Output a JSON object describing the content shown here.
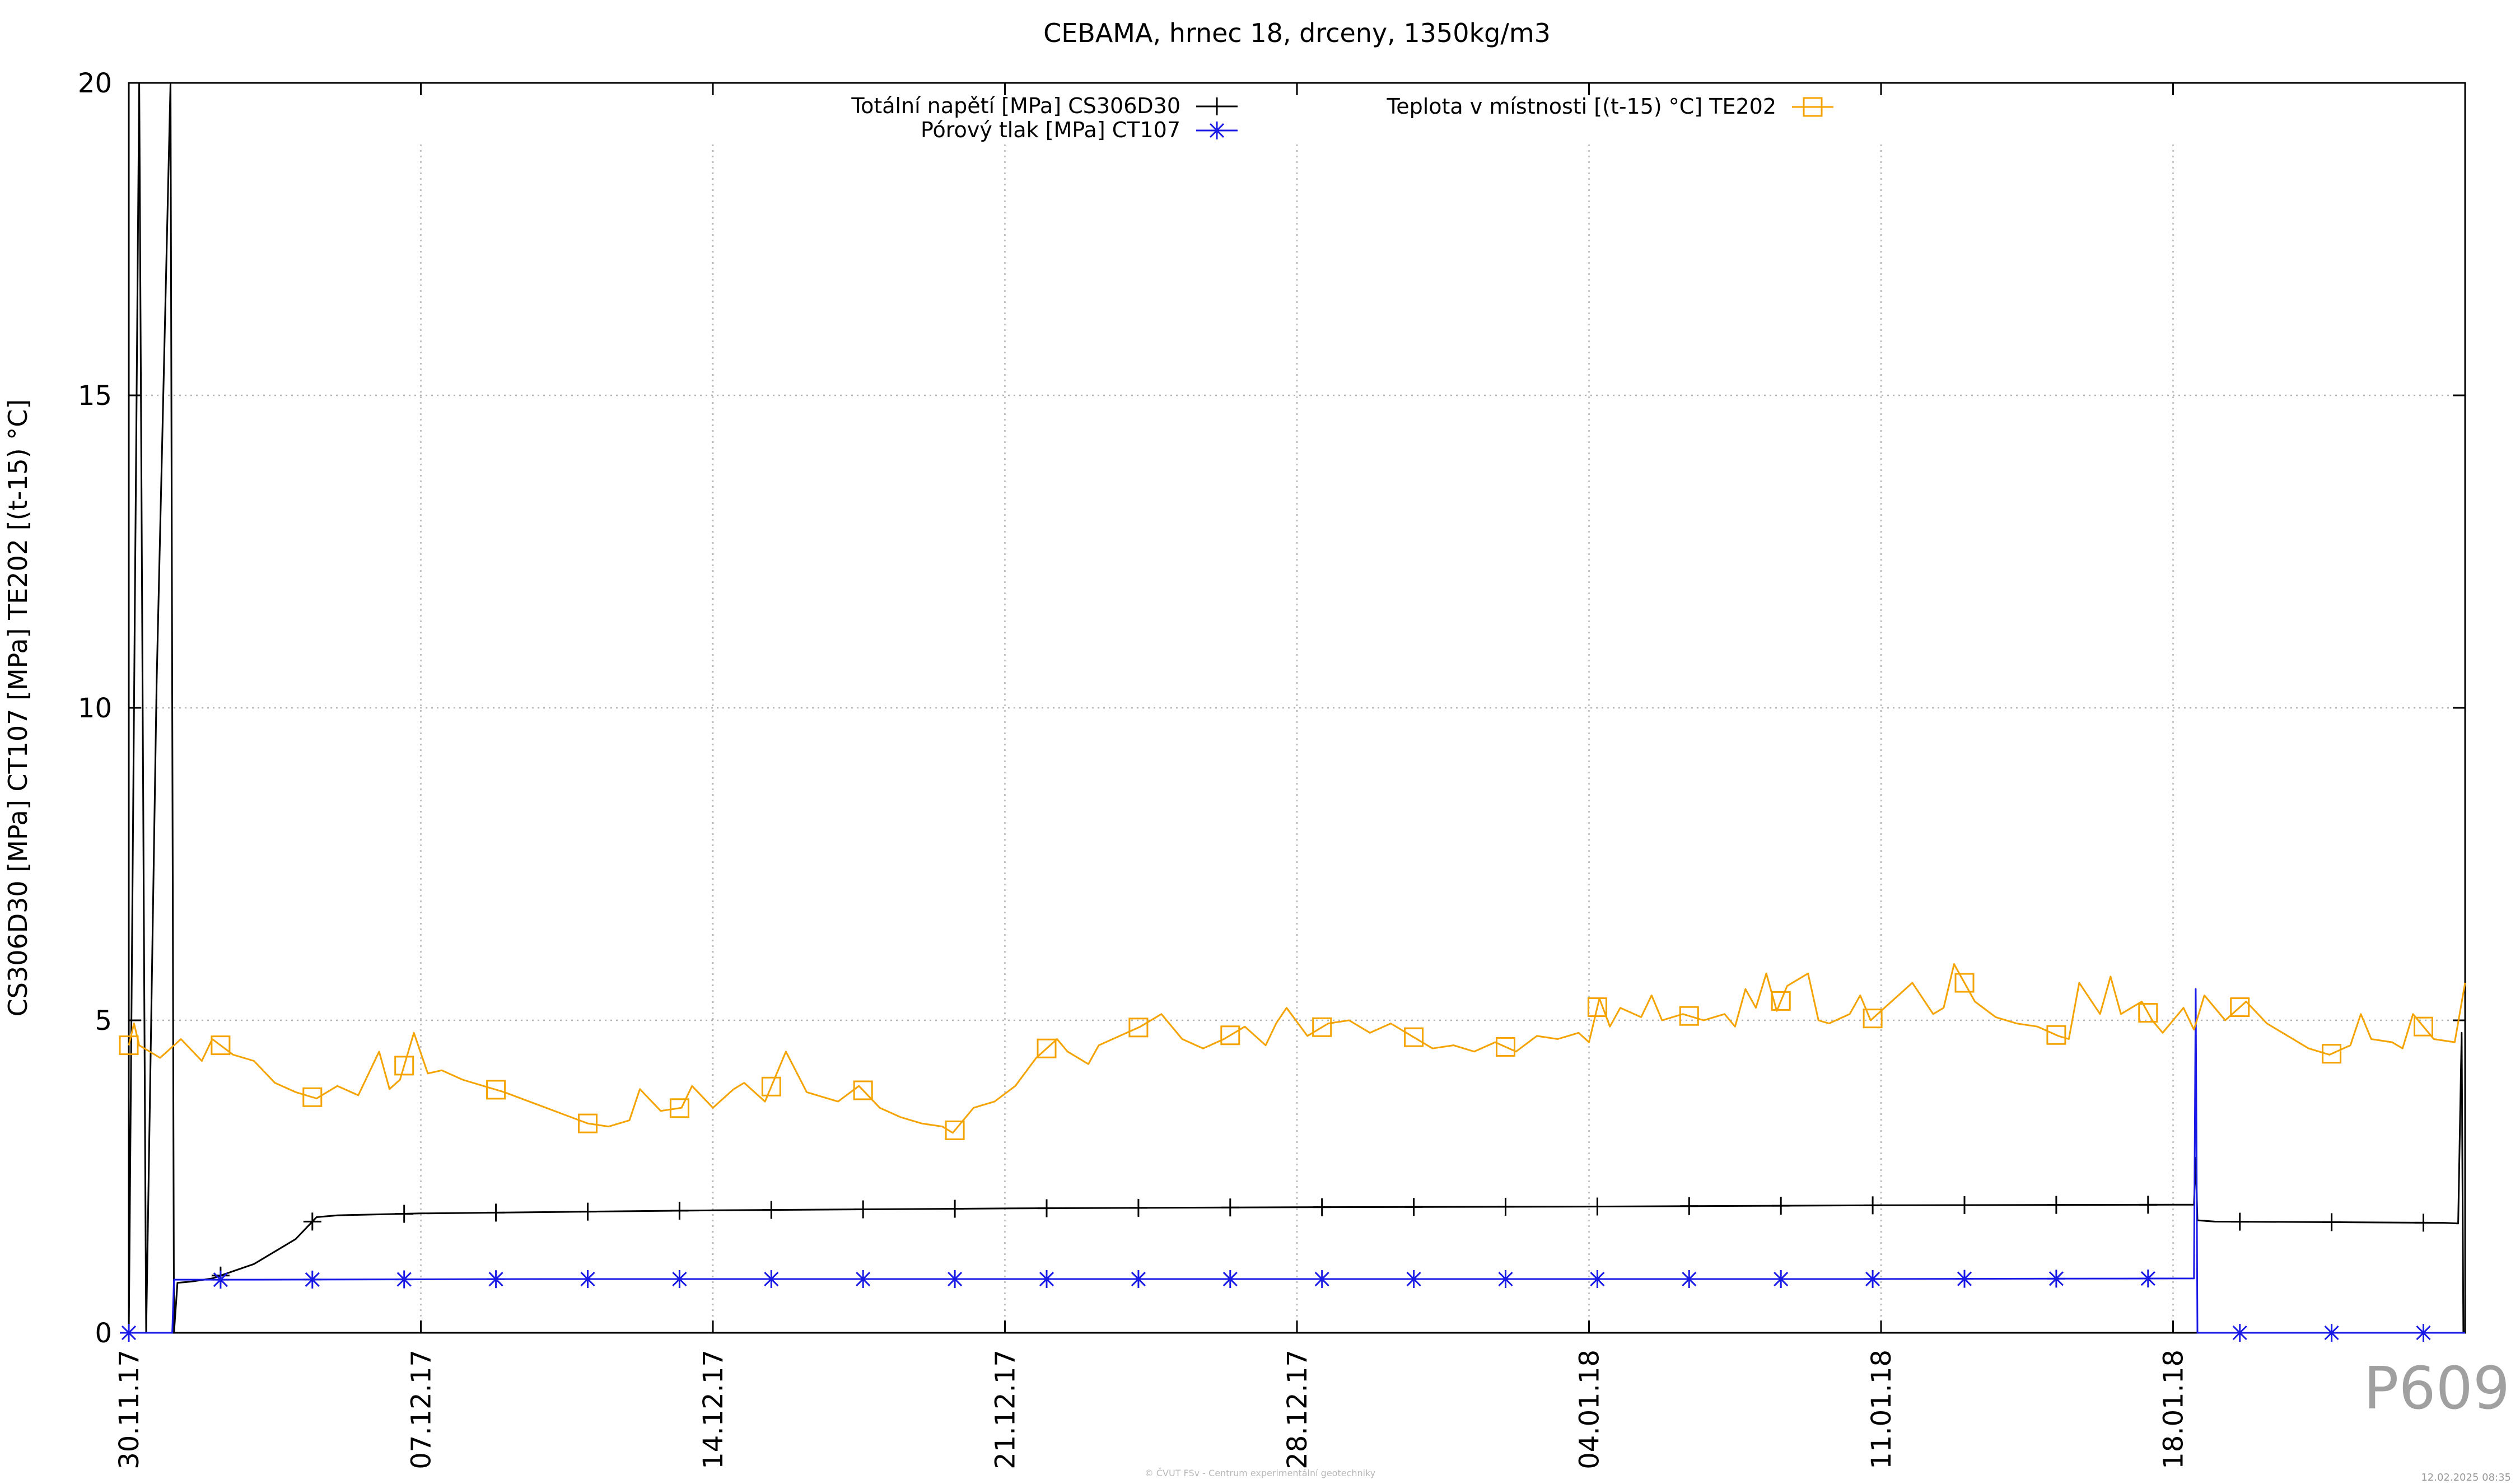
{
  "chart_data": {
    "type": "line",
    "title": "CEBAMA, hrnec 18, drceny, 1350kg/m3",
    "ylabel": "CS306D30 [MPa] CT107 [MPa] TE202 [(t-15) °C]",
    "ylim": [
      0,
      20
    ],
    "yticks": [
      0,
      5,
      10,
      15,
      20
    ],
    "xlim": [
      "2017-11-30",
      "2018-01-25"
    ],
    "xticks": [
      "30.11.17",
      "07.12.17",
      "14.12.17",
      "21.12.17",
      "28.12.17",
      "04.01.18",
      "11.01.18",
      "18.01.18"
    ],
    "grid": true,
    "legend": "top-center",
    "series": [
      {
        "name": "Totální napětí [MPa] CS306D30",
        "color": "#000000",
        "marker": "plus",
        "points": [
          [
            "2017-11-30 00:00",
            0
          ],
          [
            "2017-11-30 06:00",
            20
          ],
          [
            "2017-11-30 10:00",
            0
          ],
          [
            "2017-11-30 16:00",
            10.4
          ],
          [
            "2017-12-01 00:00",
            20
          ],
          [
            "2017-12-01 02:00",
            0
          ],
          [
            "2017-12-01 04:00",
            0.8
          ],
          [
            "2017-12-01 12:00",
            0.82
          ],
          [
            "2017-12-02 00:00",
            0.87
          ],
          [
            "2017-12-03 00:00",
            1.1
          ],
          [
            "2017-12-04 00:00",
            1.5
          ],
          [
            "2017-12-04 12:00",
            1.85
          ],
          [
            "2017-12-05 00:00",
            1.88
          ],
          [
            "2017-12-07 00:00",
            1.91
          ],
          [
            "2017-12-14 00:00",
            1.96
          ],
          [
            "2017-12-21 00:00",
            1.99
          ],
          [
            "2017-12-28 00:00",
            2.01
          ],
          [
            "2018-01-04 00:00",
            2.02
          ],
          [
            "2018-01-11 00:00",
            2.04
          ],
          [
            "2018-01-18 00:00",
            2.05
          ],
          [
            "2018-01-18 12:00",
            2.05
          ],
          [
            "2018-01-18 13:00",
            2.8
          ],
          [
            "2018-01-18 14:00",
            1.8
          ],
          [
            "2018-01-19 00:00",
            1.78
          ],
          [
            "2018-01-22 00:00",
            1.77
          ],
          [
            "2018-01-24 12:00",
            1.76
          ],
          [
            "2018-01-24 20:00",
            1.75
          ],
          [
            "2018-01-24 22:00",
            4.8
          ],
          [
            "2018-01-24 23:00",
            0
          ]
        ]
      },
      {
        "name": "Pórový tlak [MPa] CT107",
        "color": "#1a1ae6",
        "marker": "star",
        "points": [
          [
            "2017-11-30 00:00",
            0
          ],
          [
            "2017-12-01 01:00",
            0
          ],
          [
            "2017-12-01 02:00",
            0.85
          ],
          [
            "2017-12-03 00:00",
            0.85
          ],
          [
            "2017-12-10 00:00",
            0.86
          ],
          [
            "2017-12-20 00:00",
            0.86
          ],
          [
            "2018-01-01 00:00",
            0.86
          ],
          [
            "2018-01-10 00:00",
            0.86
          ],
          [
            "2018-01-18 12:00",
            0.87
          ],
          [
            "2018-01-18 13:00",
            5.5
          ],
          [
            "2018-01-18 14:00",
            0
          ],
          [
            "2018-01-25 00:00",
            0
          ]
        ]
      },
      {
        "name": "Teplota v místnosti [(t-15) °C] TE202",
        "color": "#f5a300",
        "marker": "square",
        "points": [
          [
            "2017-11-30 00:00",
            4.6
          ],
          [
            "2017-11-30 03:00",
            4.95
          ],
          [
            "2017-11-30 06:00",
            4.6
          ],
          [
            "2017-11-30 18:00",
            4.4
          ],
          [
            "2017-12-01 06:00",
            4.7
          ],
          [
            "2017-12-01 18:00",
            4.35
          ],
          [
            "2017-12-02 00:00",
            4.7
          ],
          [
            "2017-12-02 12:00",
            4.45
          ],
          [
            "2017-12-03 00:00",
            4.35
          ],
          [
            "2017-12-03 12:00",
            4.0
          ],
          [
            "2017-12-04 00:00",
            3.85
          ],
          [
            "2017-12-04 12:00",
            3.75
          ],
          [
            "2017-12-05 00:00",
            3.95
          ],
          [
            "2017-12-05 12:00",
            3.8
          ],
          [
            "2017-12-06 00:00",
            4.5
          ],
          [
            "2017-12-06 06:00",
            3.9
          ],
          [
            "2017-12-06 12:00",
            4.05
          ],
          [
            "2017-12-06 20:00",
            4.8
          ],
          [
            "2017-12-07 04:00",
            4.15
          ],
          [
            "2017-12-07 12:00",
            4.2
          ],
          [
            "2017-12-08 00:00",
            4.05
          ],
          [
            "2017-12-08 12:00",
            3.95
          ],
          [
            "2017-12-09 00:00",
            3.85
          ],
          [
            "2017-12-10 00:00",
            3.6
          ],
          [
            "2017-12-11 00:00",
            3.35
          ],
          [
            "2017-12-11 12:00",
            3.3
          ],
          [
            "2017-12-12 00:00",
            3.4
          ],
          [
            "2017-12-12 06:00",
            3.9
          ],
          [
            "2017-12-12 18:00",
            3.55
          ],
          [
            "2017-12-13 06:00",
            3.6
          ],
          [
            "2017-12-13 12:00",
            3.95
          ],
          [
            "2017-12-14 00:00",
            3.6
          ],
          [
            "2017-12-14 12:00",
            3.9
          ],
          [
            "2017-12-14 18:00",
            4.0
          ],
          [
            "2017-12-15 06:00",
            3.7
          ],
          [
            "2017-12-15 18:00",
            4.5
          ],
          [
            "2017-12-16 06:00",
            3.85
          ],
          [
            "2017-12-17 00:00",
            3.7
          ],
          [
            "2017-12-17 12:00",
            3.95
          ],
          [
            "2017-12-18 00:00",
            3.6
          ],
          [
            "2017-12-18 12:00",
            3.45
          ],
          [
            "2017-12-19 00:00",
            3.35
          ],
          [
            "2017-12-19 12:00",
            3.3
          ],
          [
            "2017-12-19 18:00",
            3.2
          ],
          [
            "2017-12-20 06:00",
            3.6
          ],
          [
            "2017-12-20 18:00",
            3.7
          ],
          [
            "2017-12-21 06:00",
            3.95
          ],
          [
            "2017-12-21 18:00",
            4.4
          ],
          [
            "2017-12-22 06:00",
            4.7
          ],
          [
            "2017-12-22 12:00",
            4.5
          ],
          [
            "2017-12-23 00:00",
            4.3
          ],
          [
            "2017-12-23 06:00",
            4.6
          ],
          [
            "2017-12-23 18:00",
            4.75
          ],
          [
            "2017-12-24 06:00",
            4.9
          ],
          [
            "2017-12-24 18:00",
            5.1
          ],
          [
            "2017-12-25 06:00",
            4.7
          ],
          [
            "2017-12-25 18:00",
            4.55
          ],
          [
            "2017-12-26 06:00",
            4.7
          ],
          [
            "2017-12-26 18:00",
            4.9
          ],
          [
            "2017-12-27 06:00",
            4.6
          ],
          [
            "2017-12-27 12:00",
            4.95
          ],
          [
            "2017-12-27 18:00",
            5.2
          ],
          [
            "2017-12-28 06:00",
            4.75
          ],
          [
            "2017-12-28 18:00",
            4.95
          ],
          [
            "2017-12-29 06:00",
            5.0
          ],
          [
            "2017-12-29 18:00",
            4.8
          ],
          [
            "2017-12-30 06:00",
            4.95
          ],
          [
            "2017-12-30 18:00",
            4.75
          ],
          [
            "2017-12-31 06:00",
            4.55
          ],
          [
            "2017-12-31 18:00",
            4.6
          ],
          [
            "2018-01-01 06:00",
            4.5
          ],
          [
            "2018-01-01 18:00",
            4.65
          ],
          [
            "2018-01-02 06:00",
            4.5
          ],
          [
            "2018-01-02 18:00",
            4.75
          ],
          [
            "2018-01-03 06:00",
            4.7
          ],
          [
            "2018-01-03 18:00",
            4.8
          ],
          [
            "2018-01-04 00:00",
            4.65
          ],
          [
            "2018-01-04 06:00",
            5.35
          ],
          [
            "2018-01-04 12:00",
            4.9
          ],
          [
            "2018-01-04 18:00",
            5.2
          ],
          [
            "2018-01-05 06:00",
            5.05
          ],
          [
            "2018-01-05 12:00",
            5.4
          ],
          [
            "2018-01-05 18:00",
            5.0
          ],
          [
            "2018-01-06 06:00",
            5.1
          ],
          [
            "2018-01-06 18:00",
            5.0
          ],
          [
            "2018-01-07 06:00",
            5.1
          ],
          [
            "2018-01-07 12:00",
            4.9
          ],
          [
            "2018-01-07 18:00",
            5.5
          ],
          [
            "2018-01-08 00:00",
            5.2
          ],
          [
            "2018-01-08 06:00",
            5.75
          ],
          [
            "2018-01-08 12:00",
            5.15
          ],
          [
            "2018-01-08 18:00",
            5.55
          ],
          [
            "2018-01-09 06:00",
            5.75
          ],
          [
            "2018-01-09 12:00",
            5.0
          ],
          [
            "2018-01-09 18:00",
            4.95
          ],
          [
            "2018-01-10 06:00",
            5.1
          ],
          [
            "2018-01-10 12:00",
            5.4
          ],
          [
            "2018-01-10 18:00",
            5.0
          ],
          [
            "2018-01-11 06:00",
            5.3
          ],
          [
            "2018-01-11 18:00",
            5.6
          ],
          [
            "2018-01-12 06:00",
            5.1
          ],
          [
            "2018-01-12 12:00",
            5.2
          ],
          [
            "2018-01-12 18:00",
            5.9
          ],
          [
            "2018-01-13 06:00",
            5.3
          ],
          [
            "2018-01-13 18:00",
            5.05
          ],
          [
            "2018-01-14 06:00",
            4.95
          ],
          [
            "2018-01-14 18:00",
            4.9
          ],
          [
            "2018-01-15 06:00",
            4.75
          ],
          [
            "2018-01-15 12:00",
            4.7
          ],
          [
            "2018-01-15 18:00",
            5.6
          ],
          [
            "2018-01-16 06:00",
            5.1
          ],
          [
            "2018-01-16 12:00",
            5.7
          ],
          [
            "2018-01-16 18:00",
            5.1
          ],
          [
            "2018-01-17 06:00",
            5.3
          ],
          [
            "2018-01-17 12:00",
            5.0
          ],
          [
            "2018-01-17 18:00",
            4.8
          ],
          [
            "2018-01-18 06:00",
            5.2
          ],
          [
            "2018-01-18 12:00",
            4.85
          ],
          [
            "2018-01-18 18:00",
            5.4
          ],
          [
            "2018-01-19 06:00",
            5.0
          ],
          [
            "2018-01-19 18:00",
            5.3
          ],
          [
            "2018-01-20 06:00",
            4.95
          ],
          [
            "2018-01-20 18:00",
            4.75
          ],
          [
            "2018-01-21 06:00",
            4.55
          ],
          [
            "2018-01-21 18:00",
            4.45
          ],
          [
            "2018-01-22 06:00",
            4.6
          ],
          [
            "2018-01-22 12:00",
            5.1
          ],
          [
            "2018-01-22 18:00",
            4.7
          ],
          [
            "2018-01-23 06:00",
            4.65
          ],
          [
            "2018-01-23 12:00",
            4.55
          ],
          [
            "2018-01-23 18:00",
            5.1
          ],
          [
            "2018-01-24 06:00",
            4.7
          ],
          [
            "2018-01-24 18:00",
            4.65
          ],
          [
            "2018-01-25 00:00",
            5.6
          ]
        ]
      }
    ]
  },
  "watermark": {
    "code": "P609"
  },
  "footer": {
    "credit": "© ČVUT FSv - Centrum experimentální geotechniky",
    "stamp": "12.02.2025 08:35"
  }
}
